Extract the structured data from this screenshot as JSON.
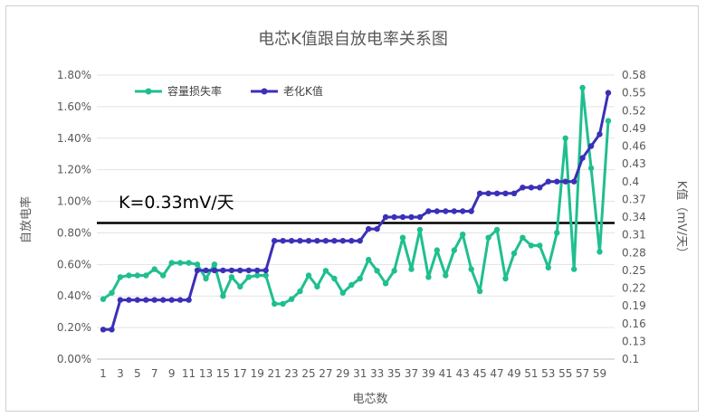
{
  "chart_data": {
    "type": "line",
    "title": "电芯K值跟自放电率关系图",
    "xlabel": "电芯数",
    "ylabel_left": "自放电率",
    "ylabel_right": "K值（mV/天）",
    "x": [
      1,
      2,
      3,
      4,
      5,
      6,
      7,
      8,
      9,
      10,
      11,
      12,
      13,
      14,
      15,
      16,
      17,
      18,
      19,
      20,
      21,
      22,
      23,
      24,
      25,
      26,
      27,
      28,
      29,
      30,
      31,
      32,
      33,
      34,
      35,
      36,
      37,
      38,
      39,
      40,
      41,
      42,
      43,
      44,
      45,
      46,
      47,
      48,
      49,
      50,
      51,
      52,
      53,
      54,
      55,
      56,
      57,
      58,
      59,
      60
    ],
    "x_tick_labels": [
      "1",
      "3",
      "5",
      "7",
      "9",
      "11",
      "13",
      "15",
      "17",
      "19",
      "21",
      "23",
      "25",
      "27",
      "29",
      "31",
      "33",
      "35",
      "37",
      "39",
      "41",
      "43",
      "45",
      "47",
      "49",
      "51",
      "53",
      "55",
      "57",
      "59"
    ],
    "y_left_ticks": [
      "0.00%",
      "0.20%",
      "0.40%",
      "0.60%",
      "0.80%",
      "1.00%",
      "1.20%",
      "1.40%",
      "1.60%",
      "1.80%"
    ],
    "y_right_ticks": [
      "0.1",
      "0.13",
      "0.16",
      "0.19",
      "0.22",
      "0.25",
      "0.28",
      "0.31",
      "0.34",
      "0.37",
      "0.4",
      "0.43",
      "0.46",
      "0.49",
      "0.52",
      "0.55",
      "0.58"
    ],
    "ylim_left": [
      0,
      1.8
    ],
    "ylim_right": [
      0.1,
      0.58
    ],
    "series": [
      {
        "name": "容量损失率",
        "axis": "left",
        "color": "#1fbf8f",
        "values": [
          0.38,
          0.42,
          0.52,
          0.53,
          0.53,
          0.53,
          0.57,
          0.53,
          0.61,
          0.61,
          0.61,
          0.6,
          0.51,
          0.6,
          0.4,
          0.52,
          0.46,
          0.52,
          0.53,
          0.53,
          0.35,
          0.35,
          0.38,
          0.43,
          0.53,
          0.46,
          0.56,
          0.51,
          0.42,
          0.47,
          0.51,
          0.63,
          0.56,
          0.48,
          0.56,
          0.77,
          0.57,
          0.82,
          0.52,
          0.69,
          0.53,
          0.69,
          0.79,
          0.57,
          0.43,
          0.77,
          0.82,
          0.51,
          0.67,
          0.77,
          0.72,
          0.72,
          0.58,
          0.8,
          1.4,
          0.57,
          1.72,
          1.21,
          0.68,
          1.51
        ]
      },
      {
        "name": "老化K值",
        "axis": "right",
        "color": "#3b30b8",
        "values": [
          0.15,
          0.15,
          0.2,
          0.2,
          0.2,
          0.2,
          0.2,
          0.2,
          0.2,
          0.2,
          0.2,
          0.25,
          0.25,
          0.25,
          0.25,
          0.25,
          0.25,
          0.25,
          0.25,
          0.25,
          0.3,
          0.3,
          0.3,
          0.3,
          0.3,
          0.3,
          0.3,
          0.3,
          0.3,
          0.3,
          0.3,
          0.32,
          0.32,
          0.34,
          0.34,
          0.34,
          0.34,
          0.34,
          0.35,
          0.35,
          0.35,
          0.35,
          0.35,
          0.35,
          0.38,
          0.38,
          0.38,
          0.38,
          0.38,
          0.39,
          0.39,
          0.39,
          0.4,
          0.4,
          0.4,
          0.4,
          0.44,
          0.46,
          0.48,
          0.55
        ]
      }
    ],
    "reference_line": {
      "label": "K=0.33mV/天",
      "axis": "right",
      "value": 0.33,
      "color": "#000000"
    },
    "legend_position": "top-left",
    "grid": true
  }
}
